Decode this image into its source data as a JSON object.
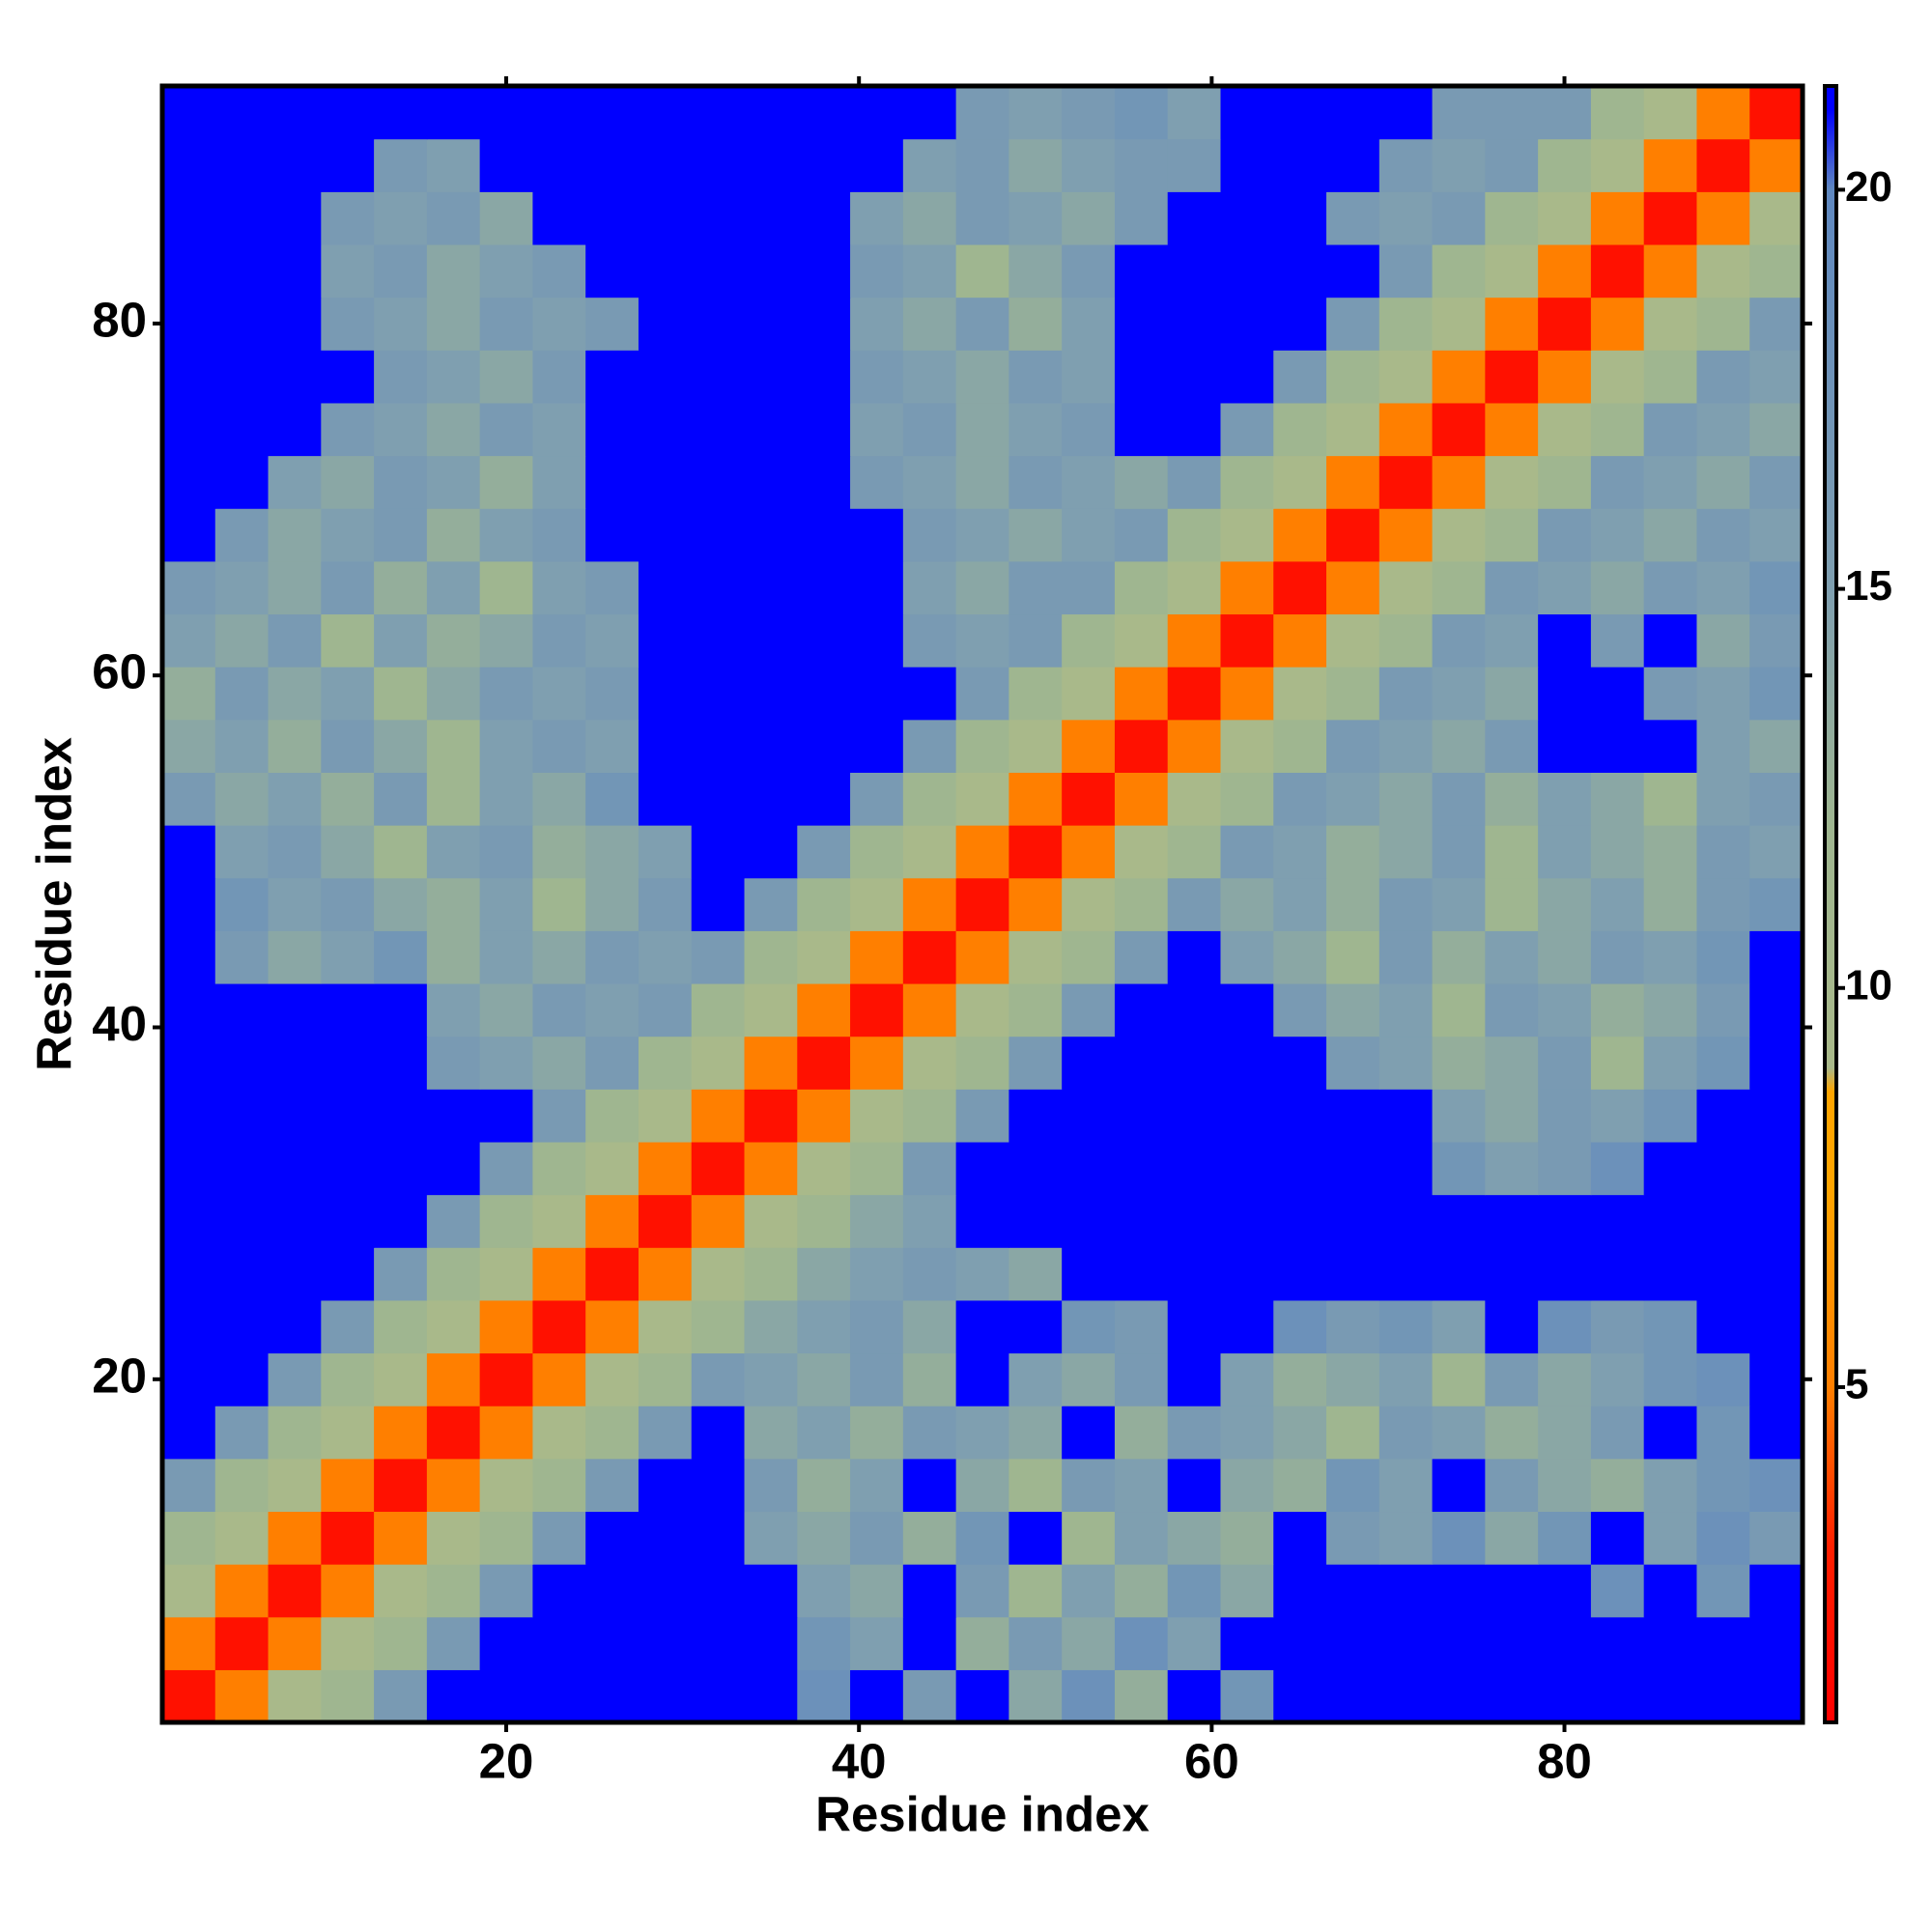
{
  "chart_data": {
    "type": "heatmap",
    "xlabel": "Residue index",
    "ylabel": "Residue index",
    "xlim": [
      0.5,
      93.5
    ],
    "ylim": [
      0.5,
      93.5
    ],
    "xticks": [
      20,
      40,
      60,
      80
    ],
    "yticks": [
      20,
      40,
      60,
      80
    ],
    "xbins": [
      0.5,
      3.5,
      6.5,
      9.5,
      12.5,
      15.5,
      18.5,
      21.5,
      24.5,
      27.5,
      30.5,
      33.5,
      36.5,
      39.5,
      42.5,
      45.5,
      48.5,
      51.5,
      54.5,
      57.5,
      60.5,
      63.5,
      66.5,
      69.5,
      72.5,
      75.5,
      78.5,
      81.5,
      84.5,
      87.5,
      90.5,
      93.5
    ],
    "ybins": [
      0.5,
      3.5,
      6.5,
      9.5,
      12.5,
      15.5,
      18.5,
      21.5,
      24.5,
      27.5,
      30.5,
      33.5,
      36.5,
      39.5,
      42.5,
      45.5,
      48.5,
      51.5,
      54.5,
      57.5,
      60.5,
      63.5,
      66.5,
      69.5,
      72.5,
      75.5,
      78.5,
      81.5,
      84.5,
      87.5,
      90.5,
      93.5
    ],
    "zlim": [
      0.8,
      21.3
    ],
    "zticks": [
      5,
      10,
      15,
      20
    ],
    "colorscale": [
      [
        0.8,
        "#ff0000"
      ],
      [
        3,
        "#ff2000"
      ],
      [
        5,
        "#ff7f00"
      ],
      [
        7.5,
        "#ffa500"
      ],
      [
        8.7,
        "#ffa500"
      ],
      [
        9,
        "#a9b98a"
      ],
      [
        12,
        "#9fb690"
      ],
      [
        15,
        "#7f9fb0"
      ],
      [
        20,
        "#5f88c0"
      ],
      [
        21,
        "#0000ff"
      ]
    ],
    "z": [
      [
        2,
        5,
        9,
        12,
        16,
        25,
        25,
        25,
        25,
        25,
        25,
        25,
        18,
        25,
        16,
        25,
        14,
        18,
        13,
        25,
        17,
        25,
        25,
        25,
        25,
        25,
        25,
        25,
        25,
        25,
        25
      ],
      [
        5,
        2,
        5,
        9,
        12,
        16,
        25,
        25,
        25,
        25,
        25,
        25,
        17,
        15,
        25,
        13,
        16,
        14,
        18,
        15,
        25,
        25,
        25,
        25,
        25,
        25,
        25,
        25,
        25,
        25,
        25
      ],
      [
        9,
        5,
        2,
        5,
        9,
        12,
        16,
        25,
        25,
        25,
        25,
        25,
        15,
        14,
        25,
        16,
        12,
        15,
        13,
        17,
        14,
        25,
        25,
        25,
        25,
        25,
        25,
        18,
        25,
        17,
        25
      ],
      [
        12,
        9,
        5,
        2,
        5,
        9,
        12,
        16,
        25,
        25,
        25,
        15,
        14,
        16,
        13,
        17,
        25,
        12,
        15,
        14,
        13,
        25,
        16,
        15,
        18,
        14,
        17,
        25,
        15,
        18,
        16
      ],
      [
        16,
        12,
        9,
        5,
        2,
        5,
        9,
        12,
        16,
        25,
        25,
        16,
        13,
        15,
        25,
        14,
        12,
        16,
        15,
        25,
        14,
        13,
        17,
        15,
        25,
        16,
        14,
        13,
        15,
        17,
        18
      ],
      [
        25,
        16,
        12,
        9,
        5,
        2,
        5,
        9,
        12,
        16,
        25,
        14,
        15,
        13,
        16,
        15,
        14,
        25,
        13,
        16,
        15,
        14,
        12,
        16,
        15,
        13,
        14,
        16,
        25,
        17,
        25
      ],
      [
        25,
        25,
        16,
        12,
        9,
        5,
        2,
        5,
        9,
        12,
        16,
        15,
        14,
        16,
        13,
        25,
        15,
        14,
        16,
        25,
        15,
        13,
        14,
        15,
        12,
        16,
        14,
        15,
        17,
        18,
        25
      ],
      [
        25,
        25,
        25,
        16,
        12,
        9,
        5,
        2,
        5,
        9,
        12,
        14,
        15,
        16,
        14,
        25,
        25,
        17,
        16,
        25,
        25,
        18,
        16,
        17,
        15,
        25,
        18,
        16,
        17,
        25,
        25
      ],
      [
        25,
        25,
        25,
        25,
        16,
        12,
        9,
        5,
        2,
        5,
        9,
        12,
        14,
        15,
        16,
        15,
        14,
        25,
        25,
        25,
        25,
        25,
        25,
        25,
        25,
        25,
        25,
        25,
        25,
        25,
        25
      ],
      [
        25,
        25,
        25,
        25,
        25,
        16,
        12,
        9,
        5,
        2,
        5,
        9,
        12,
        14,
        15,
        25,
        25,
        25,
        25,
        25,
        25,
        25,
        25,
        25,
        25,
        25,
        25,
        25,
        25,
        25,
        25
      ],
      [
        25,
        25,
        25,
        25,
        25,
        25,
        16,
        12,
        9,
        5,
        2,
        5,
        9,
        12,
        16,
        25,
        25,
        25,
        25,
        25,
        25,
        25,
        25,
        25,
        17,
        15,
        16,
        18,
        25,
        25,
        25
      ],
      [
        25,
        25,
        25,
        25,
        25,
        25,
        25,
        16,
        12,
        9,
        5,
        2,
        5,
        9,
        12,
        16,
        25,
        25,
        25,
        25,
        25,
        25,
        25,
        25,
        15,
        14,
        16,
        15,
        17,
        25,
        25
      ],
      [
        25,
        25,
        25,
        25,
        25,
        16,
        15,
        14,
        16,
        12,
        9,
        5,
        2,
        5,
        9,
        12,
        16,
        25,
        25,
        25,
        25,
        25,
        16,
        15,
        13,
        14,
        16,
        12,
        15,
        17,
        25
      ],
      [
        25,
        25,
        25,
        25,
        25,
        15,
        14,
        16,
        15,
        16,
        12,
        9,
        5,
        2,
        5,
        9,
        12,
        16,
        25,
        25,
        25,
        16,
        14,
        15,
        12,
        16,
        15,
        13,
        14,
        16,
        25
      ],
      [
        25,
        16,
        14,
        15,
        17,
        13,
        15,
        14,
        16,
        15,
        16,
        12,
        9,
        5,
        2,
        5,
        9,
        12,
        16,
        25,
        15,
        14,
        12,
        16,
        13,
        15,
        14,
        16,
        15,
        17,
        25
      ],
      [
        25,
        17,
        15,
        16,
        14,
        13,
        15,
        12,
        14,
        16,
        25,
        16,
        12,
        9,
        5,
        2,
        5,
        9,
        12,
        16,
        14,
        15,
        13,
        16,
        15,
        12,
        14,
        15,
        13,
        16,
        17
      ],
      [
        25,
        15,
        16,
        14,
        12,
        15,
        16,
        13,
        14,
        15,
        25,
        25,
        16,
        12,
        9,
        5,
        2,
        5,
        9,
        12,
        16,
        15,
        13,
        14,
        16,
        12,
        15,
        14,
        13,
        16,
        15
      ],
      [
        16,
        14,
        15,
        13,
        16,
        12,
        15,
        14,
        17,
        25,
        25,
        25,
        25,
        16,
        12,
        9,
        5,
        2,
        5,
        9,
        12,
        16,
        15,
        14,
        16,
        13,
        15,
        14,
        12,
        15,
        16
      ],
      [
        14,
        15,
        13,
        16,
        14,
        12,
        15,
        16,
        15,
        25,
        25,
        25,
        25,
        25,
        16,
        12,
        9,
        5,
        2,
        5,
        9,
        12,
        16,
        15,
        14,
        16,
        25,
        25,
        25,
        15,
        14
      ],
      [
        13,
        16,
        14,
        15,
        12,
        14,
        16,
        15,
        16,
        25,
        25,
        25,
        25,
        25,
        25,
        16,
        12,
        9,
        5,
        2,
        5,
        9,
        12,
        16,
        15,
        14,
        25,
        25,
        16,
        15,
        17
      ],
      [
        15,
        14,
        16,
        12,
        15,
        13,
        14,
        16,
        15,
        25,
        25,
        25,
        25,
        25,
        16,
        15,
        16,
        12,
        9,
        5,
        2,
        5,
        9,
        12,
        16,
        15,
        25,
        16,
        25,
        14,
        16
      ],
      [
        16,
        15,
        14,
        16,
        13,
        15,
        12,
        15,
        16,
        25,
        25,
        25,
        25,
        25,
        15,
        14,
        16,
        16,
        12,
        9,
        5,
        2,
        5,
        9,
        12,
        16,
        15,
        14,
        16,
        15,
        17
      ],
      [
        25,
        16,
        14,
        15,
        16,
        13,
        15,
        16,
        25,
        25,
        25,
        25,
        25,
        25,
        16,
        15,
        14,
        15,
        16,
        12,
        9,
        5,
        2,
        5,
        9,
        12,
        16,
        15,
        14,
        16,
        15
      ],
      [
        25,
        25,
        15,
        14,
        16,
        15,
        13,
        15,
        25,
        25,
        25,
        25,
        25,
        16,
        15,
        14,
        16,
        15,
        14,
        16,
        12,
        9,
        5,
        2,
        5,
        9,
        12,
        16,
        15,
        14,
        16
      ],
      [
        25,
        25,
        25,
        16,
        15,
        14,
        16,
        15,
        25,
        25,
        25,
        25,
        25,
        15,
        16,
        14,
        15,
        16,
        25,
        25,
        16,
        12,
        9,
        5,
        2,
        5,
        9,
        12,
        16,
        15,
        14
      ],
      [
        25,
        25,
        25,
        25,
        16,
        15,
        14,
        16,
        25,
        25,
        25,
        25,
        25,
        16,
        15,
        14,
        16,
        15,
        25,
        25,
        25,
        16,
        12,
        9,
        5,
        2,
        5,
        9,
        12,
        16,
        15
      ],
      [
        25,
        25,
        25,
        16,
        15,
        14,
        16,
        15,
        16,
        25,
        25,
        25,
        25,
        15,
        14,
        16,
        13,
        15,
        25,
        25,
        25,
        25,
        16,
        12,
        9,
        5,
        2,
        5,
        9,
        12,
        16
      ],
      [
        25,
        25,
        25,
        15,
        16,
        14,
        15,
        16,
        25,
        25,
        25,
        25,
        25,
        16,
        15,
        12,
        14,
        16,
        25,
        25,
        25,
        25,
        25,
        16,
        12,
        9,
        5,
        2,
        5,
        9,
        12
      ],
      [
        25,
        25,
        25,
        16,
        15,
        16,
        14,
        25,
        25,
        25,
        25,
        25,
        25,
        15,
        14,
        16,
        15,
        14,
        16,
        25,
        25,
        25,
        16,
        15,
        16,
        12,
        9,
        5,
        2,
        5,
        9
      ],
      [
        25,
        25,
        25,
        25,
        16,
        15,
        25,
        25,
        25,
        25,
        25,
        25,
        25,
        25,
        15,
        16,
        14,
        15,
        16,
        16,
        25,
        25,
        25,
        16,
        15,
        16,
        12,
        9,
        5,
        2,
        5
      ],
      [
        25,
        25,
        25,
        25,
        25,
        25,
        25,
        25,
        25,
        25,
        25,
        25,
        25,
        25,
        25,
        16,
        15,
        16,
        17,
        15,
        25,
        25,
        25,
        25,
        16,
        16,
        16,
        12,
        9,
        5,
        2
      ]
    ]
  }
}
